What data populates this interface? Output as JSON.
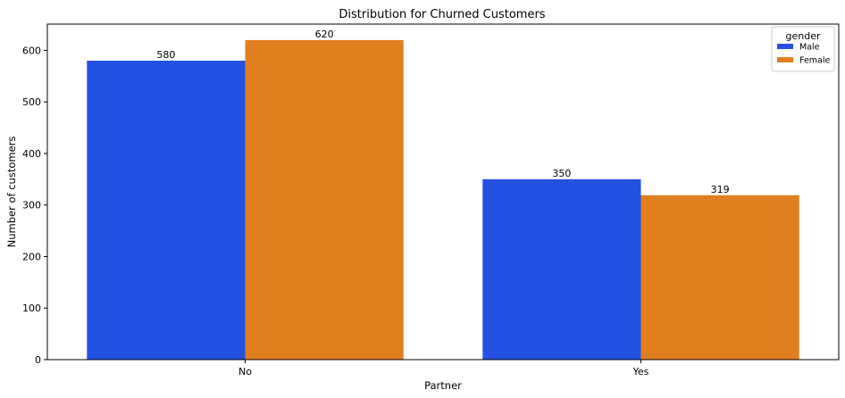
{
  "chart_data": {
    "type": "bar",
    "title": "Distribution for Churned Customers",
    "xlabel": "Partner",
    "ylabel": "Number of customers",
    "categories": [
      "No",
      "Yes"
    ],
    "series": [
      {
        "name": "Male",
        "color": "#2351e2",
        "values": [
          580,
          350
        ]
      },
      {
        "name": "Female",
        "color": "#e07e20",
        "values": [
          620,
          319
        ]
      }
    ],
    "ylim": [
      0,
      651
    ],
    "yticks": [
      0,
      100,
      200,
      300,
      400,
      500,
      600
    ],
    "grid": false,
    "legend": {
      "title": "gender",
      "placement": "top-right"
    }
  }
}
